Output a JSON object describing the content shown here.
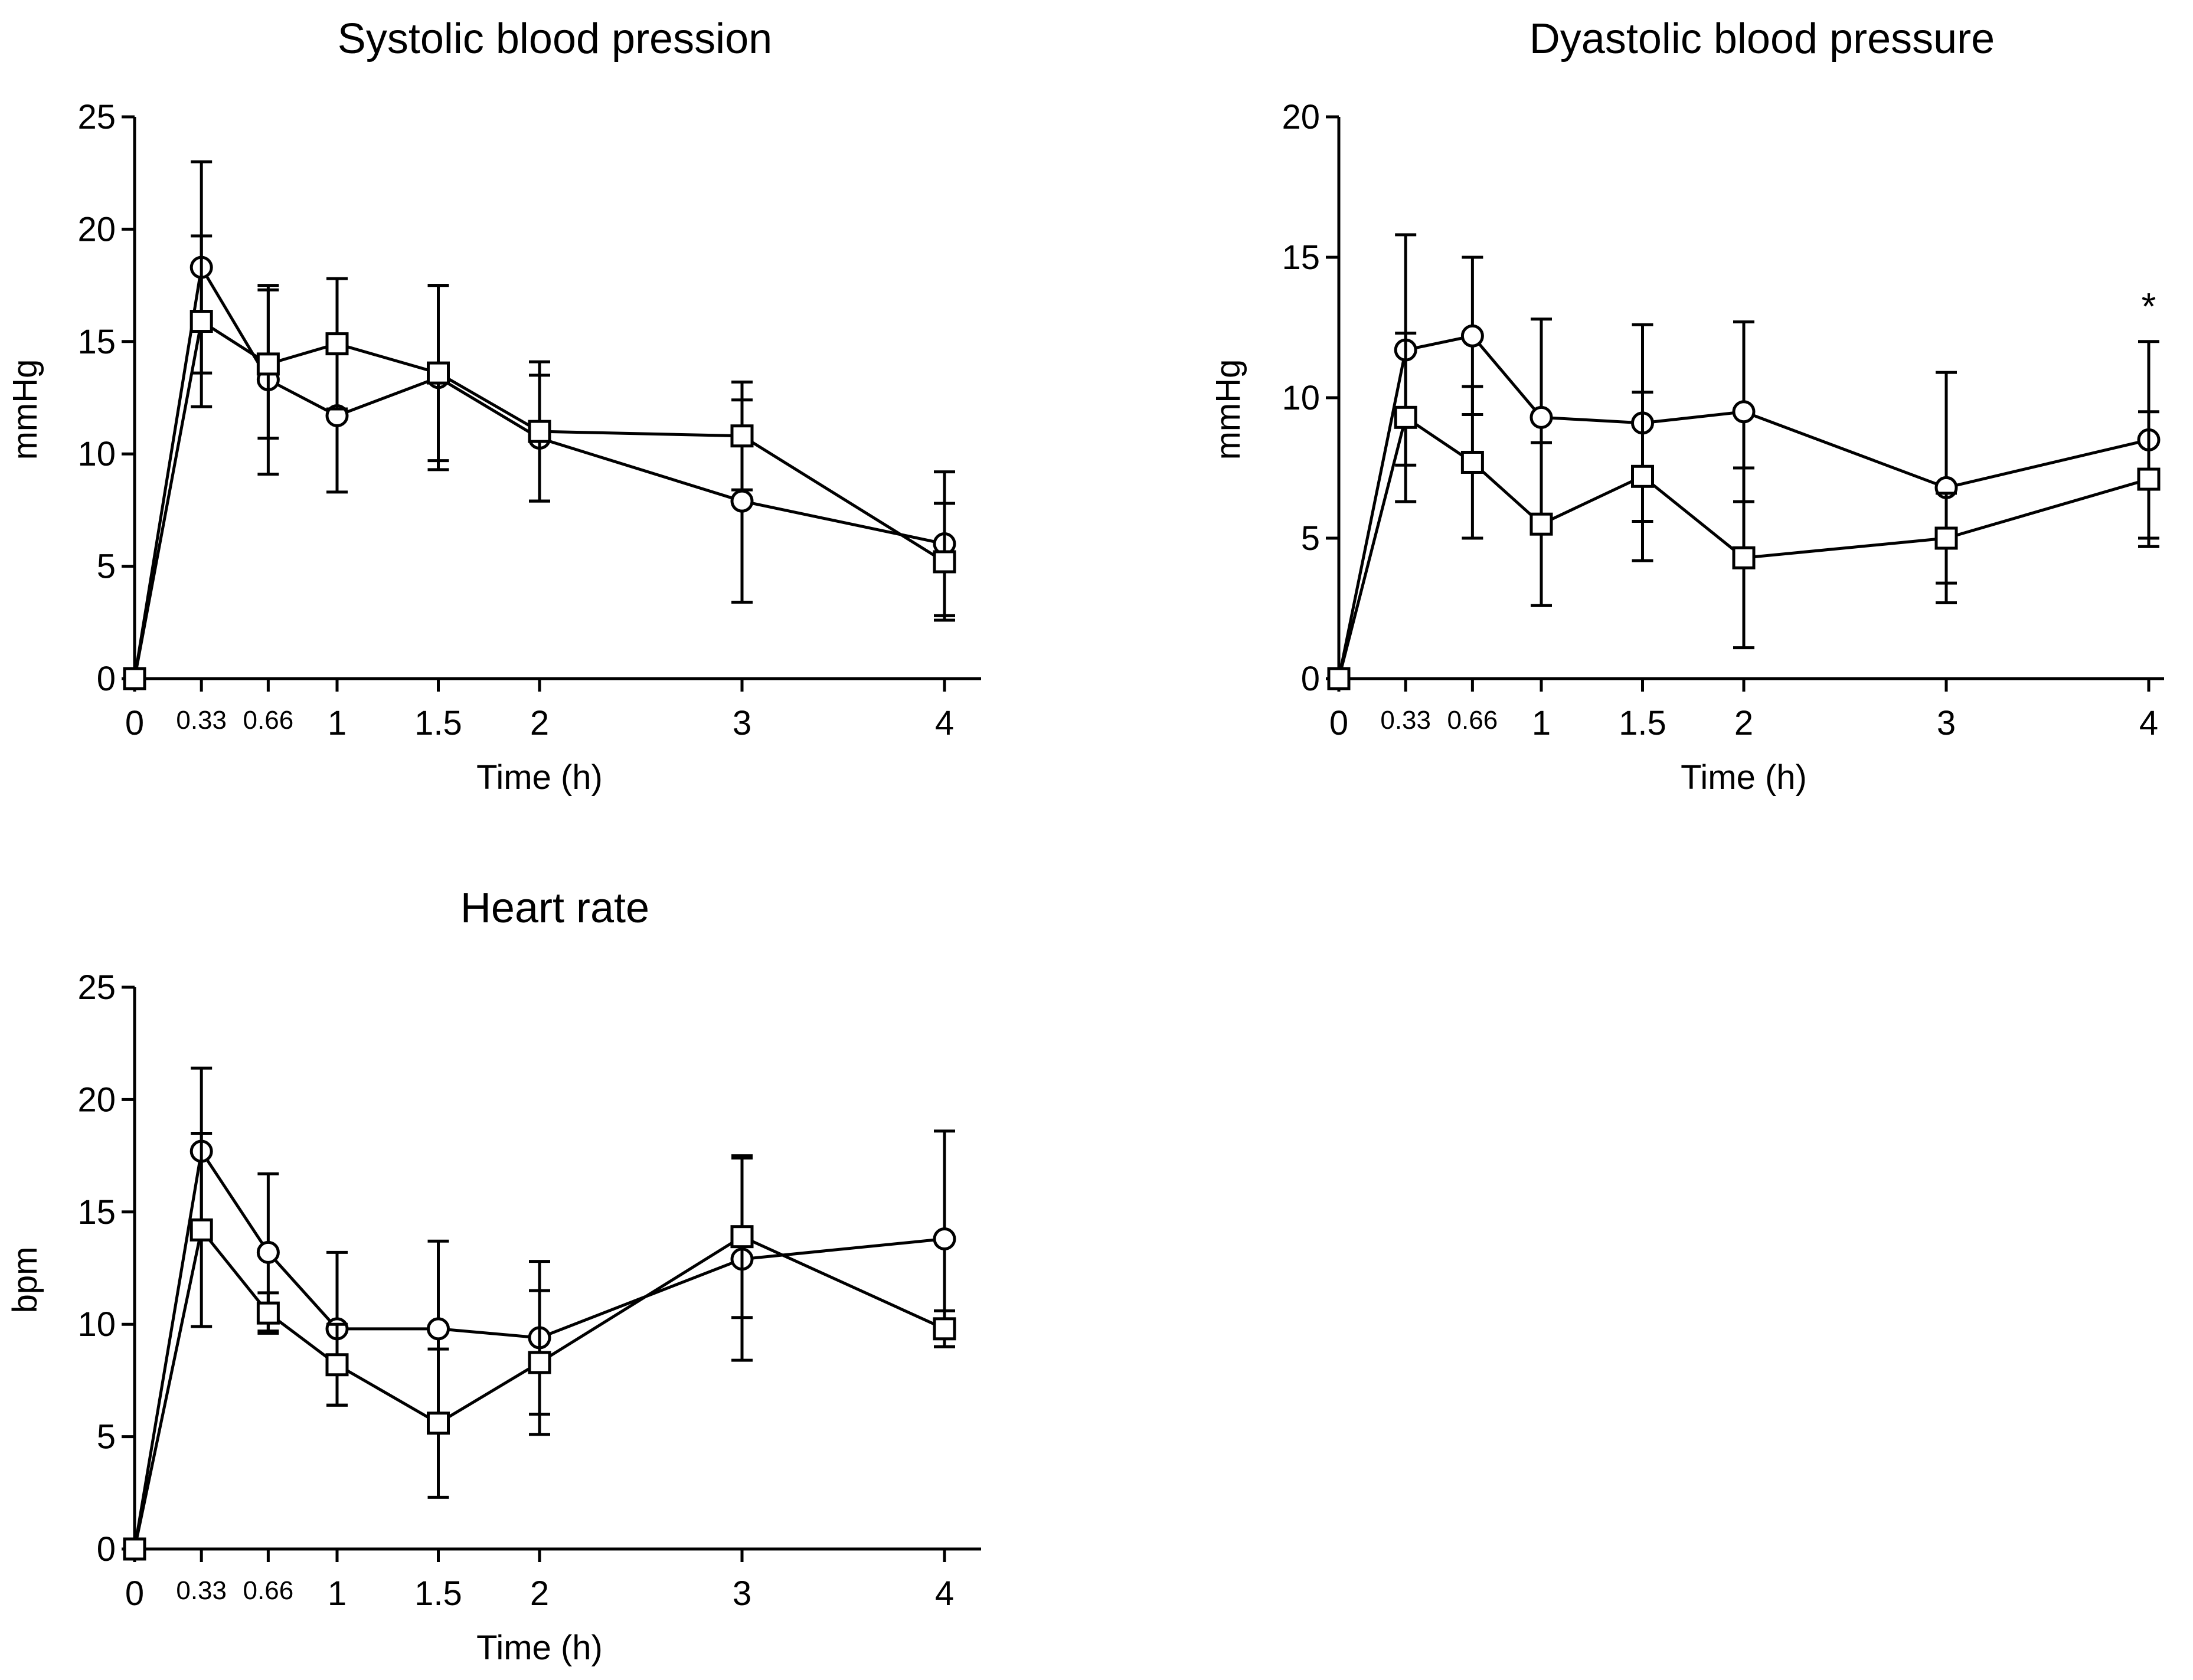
{
  "chart_data": [
    {
      "type": "line",
      "title": "Systolic blood pression",
      "xlabel": "Time (h)",
      "ylabel": "mmHg",
      "x": [
        0,
        0.33,
        0.66,
        1,
        1.5,
        2,
        3,
        4
      ],
      "x_tick_labels": [
        "0",
        "0.33",
        "0.66",
        "1",
        "1.5",
        "2",
        "3",
        "4"
      ],
      "y_ticks": [
        0,
        5,
        10,
        15,
        20,
        25
      ],
      "y_tick_labels": [
        "0",
        "5",
        "10",
        "15",
        "20",
        "25"
      ],
      "ylim": [
        0,
        25
      ],
      "series": [
        {
          "name": "circle",
          "marker": "circle",
          "values": [
            0,
            18.3,
            13.3,
            11.7,
            13.4,
            10.7,
            7.9,
            6.0
          ],
          "error": [
            0,
            4.7,
            4.2,
            3.4,
            4.1,
            2.8,
            4.5,
            3.2
          ]
        },
        {
          "name": "square",
          "marker": "square",
          "values": [
            0,
            15.9,
            14.0,
            14.9,
            13.6,
            11.0,
            10.8,
            5.2
          ],
          "error": [
            0,
            3.8,
            3.3,
            2.9,
            3.9,
            3.1,
            2.4,
            2.6
          ]
        }
      ],
      "annotations": []
    },
    {
      "type": "line",
      "title": "Dyastolic blood pressure",
      "xlabel": "Time (h)",
      "ylabel": "mmHg",
      "x": [
        0,
        0.33,
        0.66,
        1,
        1.5,
        2,
        3,
        4
      ],
      "x_tick_labels": [
        "0",
        "0.33",
        "0.66",
        "1",
        "1.5",
        "2",
        "3",
        "4"
      ],
      "y_ticks": [
        0,
        5,
        10,
        15,
        20
      ],
      "y_tick_labels": [
        "0",
        "5",
        "10",
        "15",
        "20"
      ],
      "ylim": [
        0,
        20
      ],
      "series": [
        {
          "name": "circle",
          "marker": "circle",
          "values": [
            0,
            11.7,
            12.2,
            9.3,
            9.1,
            9.5,
            6.8,
            8.5
          ],
          "error": [
            0,
            4.1,
            2.8,
            3.5,
            3.5,
            3.2,
            4.1,
            3.5
          ]
        },
        {
          "name": "square",
          "marker": "square",
          "values": [
            0,
            9.3,
            7.7,
            5.5,
            7.2,
            4.3,
            5.0,
            7.1
          ],
          "error": [
            0,
            3.0,
            2.7,
            2.9,
            3.0,
            3.2,
            1.6,
            2.4
          ]
        }
      ],
      "annotations": [
        {
          "x": 4,
          "text": "*"
        }
      ]
    },
    {
      "type": "line",
      "title": "Heart rate",
      "xlabel": "Time (h)",
      "ylabel": "bpm",
      "x": [
        0,
        0.33,
        0.66,
        1,
        1.5,
        2,
        3,
        4
      ],
      "x_tick_labels": [
        "0",
        "0.33",
        "0.66",
        "1",
        "1.5",
        "2",
        "3",
        "4"
      ],
      "y_ticks": [
        0,
        5,
        10,
        15,
        20,
        25
      ],
      "y_tick_labels": [
        "0",
        "5",
        "10",
        "15",
        "20",
        "25"
      ],
      "ylim": [
        0,
        25
      ],
      "series": [
        {
          "name": "circle",
          "marker": "circle",
          "values": [
            0,
            17.7,
            13.2,
            9.8,
            9.8,
            9.4,
            12.9,
            13.8
          ],
          "error": [
            0,
            3.7,
            3.5,
            3.4,
            3.9,
            3.4,
            4.5,
            4.8
          ]
        },
        {
          "name": "square",
          "marker": "square",
          "values": [
            0,
            14.2,
            10.5,
            8.2,
            5.6,
            8.3,
            13.9,
            9.8
          ],
          "error": [
            0,
            4.3,
            0.9,
            1.8,
            3.3,
            3.2,
            3.6,
            0.8
          ]
        }
      ],
      "annotations": []
    }
  ]
}
